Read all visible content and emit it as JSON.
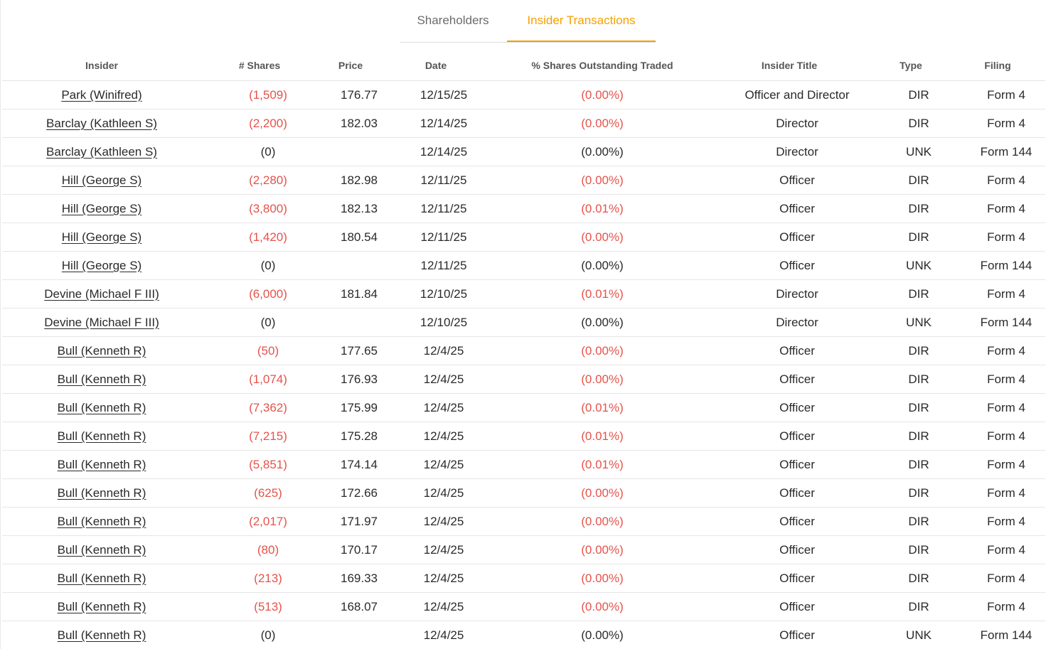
{
  "tabs": [
    {
      "label": "Shareholders",
      "active": false
    },
    {
      "label": "Insider Transactions",
      "active": true
    }
  ],
  "colors": {
    "accent": "#f5a000",
    "negative": "#e5534b",
    "text": "#2a2a2a",
    "header_text": "#555555"
  },
  "table": {
    "headers": {
      "insider": "Insider",
      "shares": "# Shares",
      "price": "Price",
      "date": "Date",
      "pct": "% Shares Outstanding Traded",
      "title": "Insider Title",
      "type": "Type",
      "filing": "Filing"
    },
    "rows": [
      {
        "insider": "Park (Winifred)",
        "shares": "(1,509)",
        "price": "176.77",
        "date": "12/15/25",
        "pct": "(0.00%)",
        "title": "Officer and Director",
        "type": "DIR",
        "filing": "Form 4",
        "negative": true
      },
      {
        "insider": "Barclay (Kathleen S)",
        "shares": "(2,200)",
        "price": "182.03",
        "date": "12/14/25",
        "pct": "(0.00%)",
        "title": "Director",
        "type": "DIR",
        "filing": "Form 4",
        "negative": true
      },
      {
        "insider": "Barclay (Kathleen S)",
        "shares": "(0)",
        "price": "",
        "date": "12/14/25",
        "pct": "(0.00%)",
        "title": "Director",
        "type": "UNK",
        "filing": "Form 144",
        "negative": false
      },
      {
        "insider": "Hill (George S)",
        "shares": "(2,280)",
        "price": "182.98",
        "date": "12/11/25",
        "pct": "(0.00%)",
        "title": "Officer",
        "type": "DIR",
        "filing": "Form 4",
        "negative": true
      },
      {
        "insider": "Hill (George S)",
        "shares": "(3,800)",
        "price": "182.13",
        "date": "12/11/25",
        "pct": "(0.01%)",
        "title": "Officer",
        "type": "DIR",
        "filing": "Form 4",
        "negative": true
      },
      {
        "insider": "Hill (George S)",
        "shares": "(1,420)",
        "price": "180.54",
        "date": "12/11/25",
        "pct": "(0.00%)",
        "title": "Officer",
        "type": "DIR",
        "filing": "Form 4",
        "negative": true
      },
      {
        "insider": "Hill (George S)",
        "shares": "(0)",
        "price": "",
        "date": "12/11/25",
        "pct": "(0.00%)",
        "title": "Officer",
        "type": "UNK",
        "filing": "Form 144",
        "negative": false
      },
      {
        "insider": "Devine (Michael F III)",
        "shares": "(6,000)",
        "price": "181.84",
        "date": "12/10/25",
        "pct": "(0.01%)",
        "title": "Director",
        "type": "DIR",
        "filing": "Form 4",
        "negative": true
      },
      {
        "insider": "Devine (Michael F III)",
        "shares": "(0)",
        "price": "",
        "date": "12/10/25",
        "pct": "(0.00%)",
        "title": "Director",
        "type": "UNK",
        "filing": "Form 144",
        "negative": false
      },
      {
        "insider": "Bull (Kenneth R)",
        "shares": "(50)",
        "price": "177.65",
        "date": "12/4/25",
        "pct": "(0.00%)",
        "title": "Officer",
        "type": "DIR",
        "filing": "Form 4",
        "negative": true
      },
      {
        "insider": "Bull (Kenneth R)",
        "shares": "(1,074)",
        "price": "176.93",
        "date": "12/4/25",
        "pct": "(0.00%)",
        "title": "Officer",
        "type": "DIR",
        "filing": "Form 4",
        "negative": true
      },
      {
        "insider": "Bull (Kenneth R)",
        "shares": "(7,362)",
        "price": "175.99",
        "date": "12/4/25",
        "pct": "(0.01%)",
        "title": "Officer",
        "type": "DIR",
        "filing": "Form 4",
        "negative": true
      },
      {
        "insider": "Bull (Kenneth R)",
        "shares": "(7,215)",
        "price": "175.28",
        "date": "12/4/25",
        "pct": "(0.01%)",
        "title": "Officer",
        "type": "DIR",
        "filing": "Form 4",
        "negative": true
      },
      {
        "insider": "Bull (Kenneth R)",
        "shares": "(5,851)",
        "price": "174.14",
        "date": "12/4/25",
        "pct": "(0.01%)",
        "title": "Officer",
        "type": "DIR",
        "filing": "Form 4",
        "negative": true
      },
      {
        "insider": "Bull (Kenneth R)",
        "shares": "(625)",
        "price": "172.66",
        "date": "12/4/25",
        "pct": "(0.00%)",
        "title": "Officer",
        "type": "DIR",
        "filing": "Form 4",
        "negative": true
      },
      {
        "insider": "Bull (Kenneth R)",
        "shares": "(2,017)",
        "price": "171.97",
        "date": "12/4/25",
        "pct": "(0.00%)",
        "title": "Officer",
        "type": "DIR",
        "filing": "Form 4",
        "negative": true
      },
      {
        "insider": "Bull (Kenneth R)",
        "shares": "(80)",
        "price": "170.17",
        "date": "12/4/25",
        "pct": "(0.00%)",
        "title": "Officer",
        "type": "DIR",
        "filing": "Form 4",
        "negative": true
      },
      {
        "insider": "Bull (Kenneth R)",
        "shares": "(213)",
        "price": "169.33",
        "date": "12/4/25",
        "pct": "(0.00%)",
        "title": "Officer",
        "type": "DIR",
        "filing": "Form 4",
        "negative": true
      },
      {
        "insider": "Bull (Kenneth R)",
        "shares": "(513)",
        "price": "168.07",
        "date": "12/4/25",
        "pct": "(0.00%)",
        "title": "Officer",
        "type": "DIR",
        "filing": "Form 4",
        "negative": true
      },
      {
        "insider": "Bull (Kenneth R)",
        "shares": "(0)",
        "price": "",
        "date": "12/4/25",
        "pct": "(0.00%)",
        "title": "Officer",
        "type": "UNK",
        "filing": "Form 144",
        "negative": false
      }
    ]
  }
}
